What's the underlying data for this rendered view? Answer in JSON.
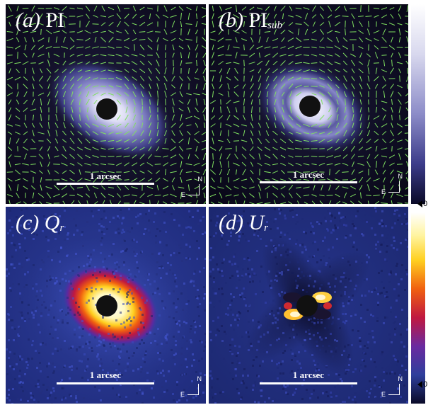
{
  "panels": [
    {
      "id": "a",
      "letter": "(a)",
      "name": "PI",
      "sub": "",
      "scale_label": "1 arcsec",
      "north": "N",
      "east": "E"
    },
    {
      "id": "b",
      "letter": "(b)",
      "name": "PI",
      "sub": "sub",
      "scale_label": "1 arcsec",
      "north": "N",
      "east": "E"
    },
    {
      "id": "c",
      "letter": "(c)",
      "name": "Q",
      "sub": "r",
      "scale_label": "1 arcsec",
      "north": "N",
      "east": "E"
    },
    {
      "id": "d",
      "letter": "(d)",
      "name": "U",
      "sub": "r",
      "scale_label": "1 arcsec",
      "north": "N",
      "east": "E"
    }
  ],
  "colorbars": [
    {
      "id": "top",
      "min_label": "0",
      "colormap": "blue-white"
    },
    {
      "id": "bottom",
      "min_label": "0",
      "colormap": "blue-red-yellow-white"
    }
  ],
  "colors": {
    "vector": "#7fe060",
    "occulting_mask": "#111111"
  }
}
